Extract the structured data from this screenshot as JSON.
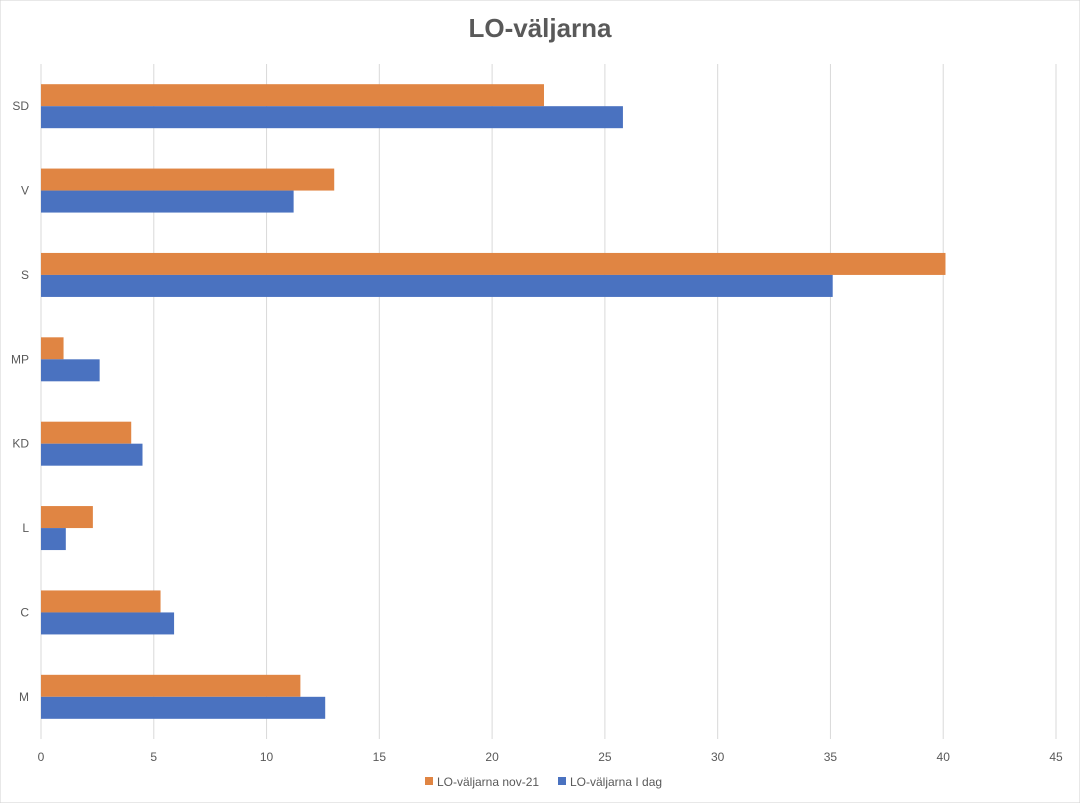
{
  "chart_data": {
    "type": "bar",
    "orientation": "horizontal",
    "title": "LO-väljarna",
    "xlabel": "",
    "ylabel": "",
    "categories": [
      "M",
      "C",
      "L",
      "KD",
      "MP",
      "S",
      "V",
      "SD"
    ],
    "series": [
      {
        "name": "LO-väljarna nov-21",
        "color": "#E08543",
        "values": [
          11.5,
          5.3,
          2.3,
          4.0,
          1.0,
          40.1,
          13.0,
          22.3
        ]
      },
      {
        "name": "LO-väljarna I dag",
        "color": "#4A72C0",
        "values": [
          12.6,
          5.9,
          1.1,
          4.5,
          2.6,
          35.1,
          11.2,
          25.8
        ]
      }
    ],
    "xlim": [
      0,
      45
    ],
    "xticks": [
      "0",
      "5",
      "10",
      "15",
      "20",
      "25",
      "30",
      "35",
      "40",
      "45"
    ],
    "grid": true,
    "legend_position": "bottom"
  }
}
